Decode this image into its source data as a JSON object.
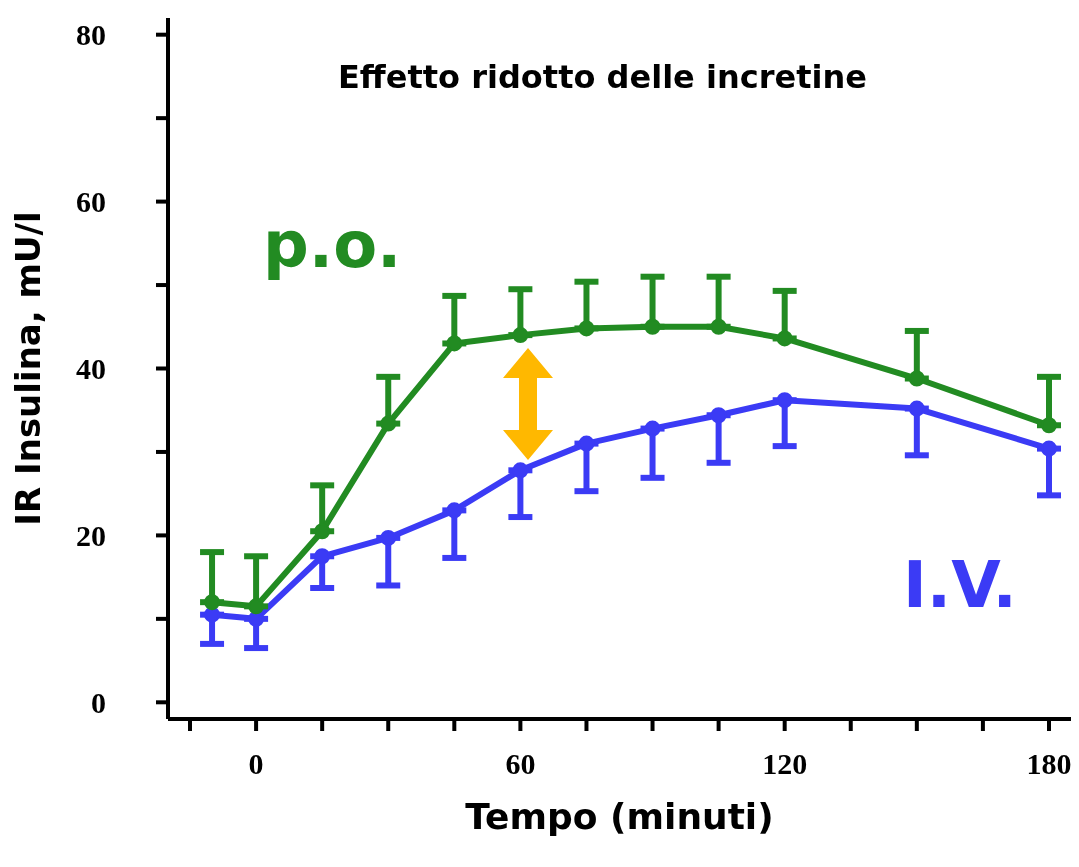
{
  "chart_data": {
    "type": "line",
    "xlabel": "Tempo (minuti)",
    "ylabel": "IR Insulina, mU/l",
    "annotations": [
      "Effetto ridotto delle incretine"
    ],
    "xlim": [
      -20,
      185
    ],
    "xticks": [
      {
        "value": -15,
        "label": null
      },
      0,
      {
        "value": 15,
        "label": null
      },
      {
        "value": 30,
        "label": null
      },
      {
        "value": 45,
        "label": null
      },
      60,
      {
        "value": 75,
        "label": null
      },
      {
        "value": 90,
        "label": null
      },
      {
        "value": 105,
        "label": null
      },
      120,
      {
        "value": 135,
        "label": null
      },
      {
        "value": 150,
        "label": null
      },
      {
        "value": 165,
        "label": null
      },
      180
    ],
    "ylim": [
      -2,
      82
    ],
    "yticks": [
      0,
      {
        "value": 10,
        "label": null
      },
      20,
      {
        "value": 30,
        "label": null
      },
      40,
      {
        "value": 50,
        "label": null
      },
      60,
      {
        "value": 70,
        "label": null
      },
      80
    ],
    "grid": false,
    "marker": "circle",
    "x": [
      -10,
      0,
      15,
      30,
      45,
      60,
      75,
      90,
      105,
      120,
      150,
      180
    ],
    "series": [
      {
        "name": "p.o.",
        "color": "#228b22",
        "values": [
          12,
          11.5,
          20.5,
          33.4,
          43,
          44,
          44.8,
          45,
          45,
          43.6,
          38.8,
          33.2
        ],
        "errors": [
          [
            12,
            18
          ],
          [
            11.5,
            17.5
          ],
          [
            20.5,
            26
          ],
          [
            33.4,
            39
          ],
          [
            43,
            48.7
          ],
          [
            44,
            49.5
          ],
          [
            44.8,
            50.4
          ],
          [
            45,
            51
          ],
          [
            45,
            51
          ],
          [
            43.6,
            49.3
          ],
          [
            38.8,
            44.5
          ],
          [
            33.2,
            39
          ]
        ]
      },
      {
        "name": "I.V.",
        "color": "#3b3bf5",
        "values": [
          10.5,
          10,
          17.5,
          19.7,
          23,
          27.8,
          31,
          32.8,
          34.4,
          36.2,
          35.2,
          30.4
        ],
        "errors": [
          [
            7,
            10.5
          ],
          [
            6.5,
            10
          ],
          [
            13.7,
            17.5
          ],
          [
            14,
            19.7
          ],
          [
            17.3,
            23
          ],
          [
            22.2,
            27.8
          ],
          [
            25.3,
            31
          ],
          [
            26.9,
            32.8
          ],
          [
            28.7,
            34.4
          ],
          [
            30.7,
            36.2
          ],
          [
            29.6,
            35.2
          ],
          [
            24.8,
            30.4
          ]
        ]
      }
    ]
  }
}
